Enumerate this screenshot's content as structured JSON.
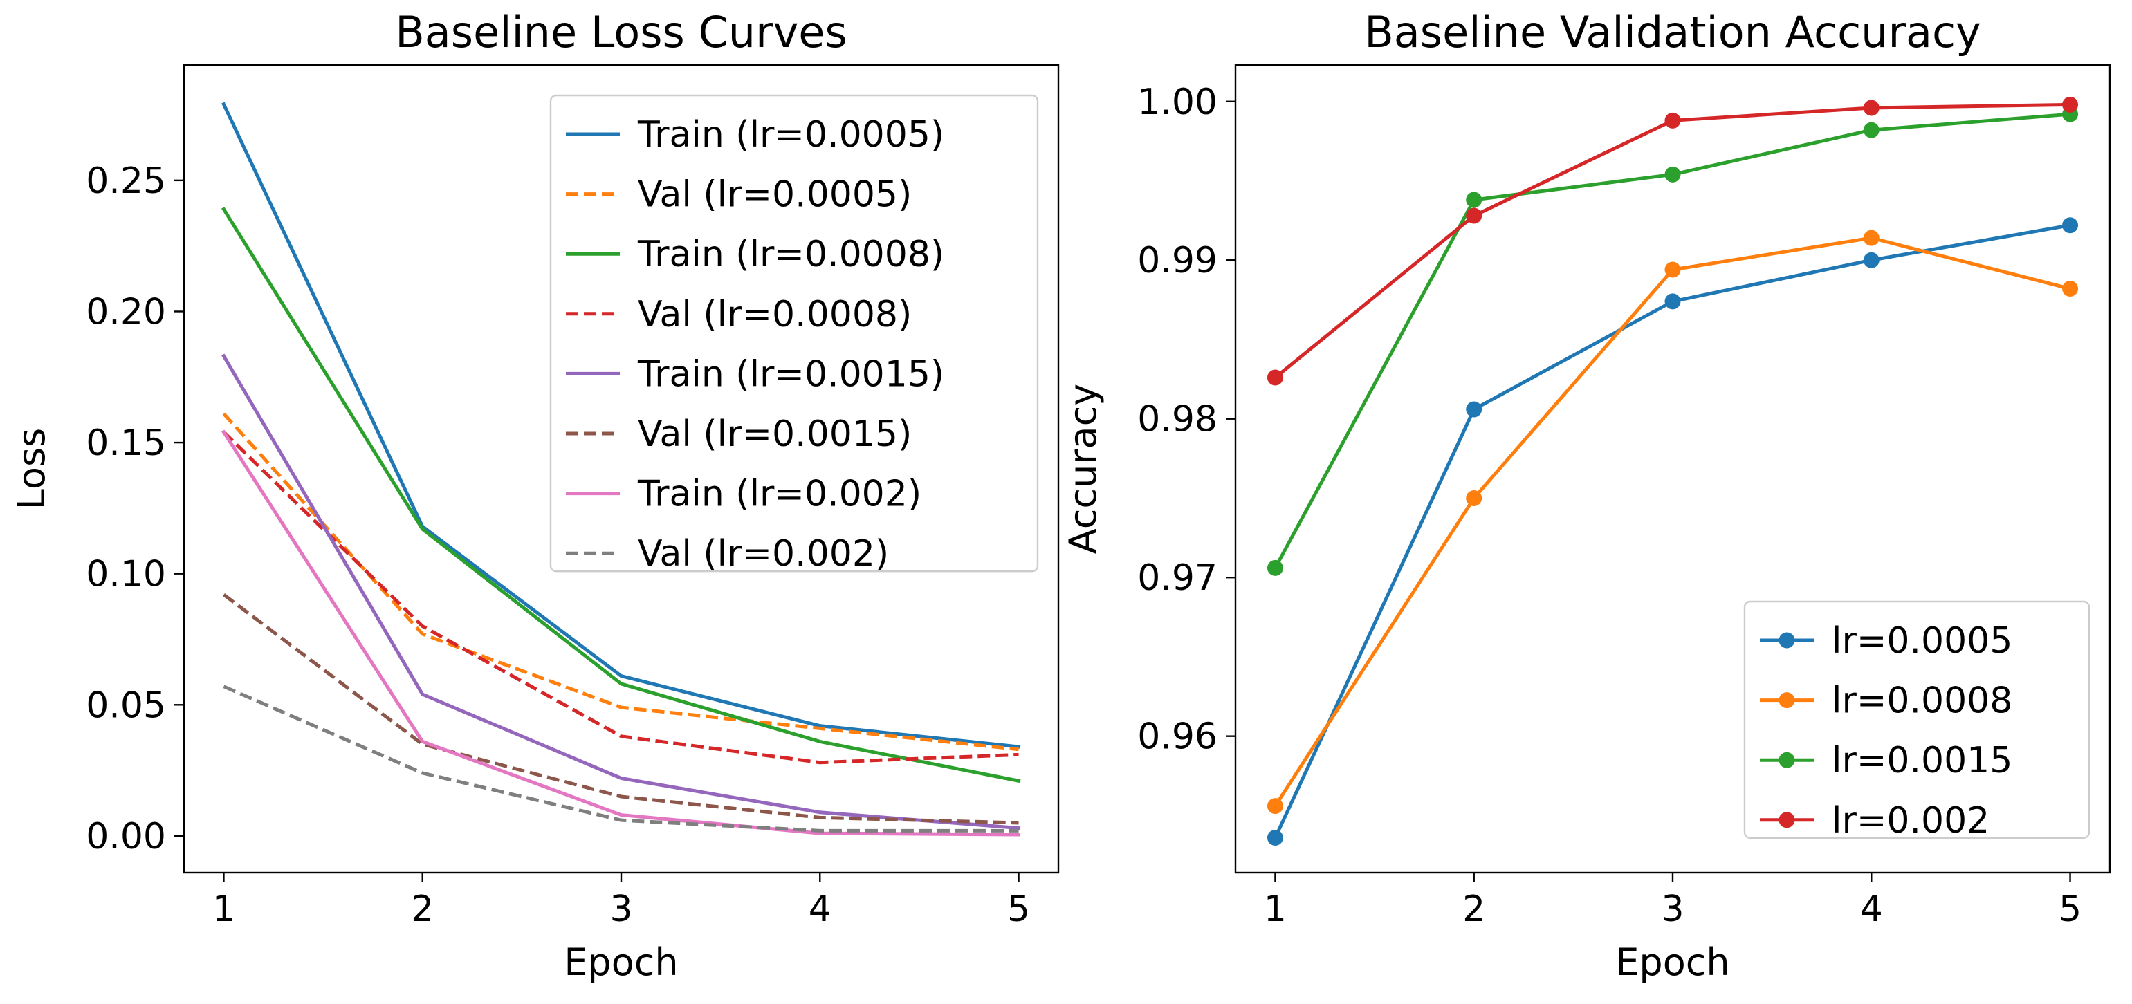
{
  "chart_data": [
    {
      "type": "line",
      "title": "Baseline Loss Curves",
      "xlabel": "Epoch",
      "ylabel": "Loss",
      "x": [
        1,
        2,
        3,
        4,
        5
      ],
      "xlim": [
        0.8,
        5.2
      ],
      "ylim": [
        -0.014,
        0.294
      ],
      "xticks": [
        1,
        2,
        3,
        4,
        5
      ],
      "yticks": [
        0.0,
        0.05,
        0.1,
        0.15,
        0.2,
        0.25
      ],
      "ytick_labels": [
        "0.00",
        "0.05",
        "0.10",
        "0.15",
        "0.20",
        "0.25"
      ],
      "legend_position": "upper right",
      "series": [
        {
          "name": "Train (lr=0.0005)",
          "color": "#1f77b4",
          "dashed": false,
          "values": [
            0.279,
            0.118,
            0.061,
            0.042,
            0.034
          ]
        },
        {
          "name": "Val (lr=0.0005)",
          "color": "#ff7f0e",
          "dashed": true,
          "values": [
            0.161,
            0.077,
            0.049,
            0.041,
            0.033
          ]
        },
        {
          "name": "Train (lr=0.0008)",
          "color": "#2ca02c",
          "dashed": false,
          "values": [
            0.239,
            0.117,
            0.058,
            0.036,
            0.021
          ]
        },
        {
          "name": "Val (lr=0.0008)",
          "color": "#d62728",
          "dashed": true,
          "values": [
            0.154,
            0.08,
            0.038,
            0.028,
            0.031
          ]
        },
        {
          "name": "Train (lr=0.0015)",
          "color": "#9467bd",
          "dashed": false,
          "values": [
            0.183,
            0.054,
            0.022,
            0.009,
            0.003
          ]
        },
        {
          "name": "Val (lr=0.0015)",
          "color": "#8c564b",
          "dashed": true,
          "values": [
            0.092,
            0.035,
            0.015,
            0.007,
            0.005
          ]
        },
        {
          "name": "Train (lr=0.002)",
          "color": "#e377c2",
          "dashed": false,
          "values": [
            0.154,
            0.036,
            0.008,
            0.001,
            0.0005
          ]
        },
        {
          "name": "Val (lr=0.002)",
          "color": "#7f7f7f",
          "dashed": true,
          "values": [
            0.057,
            0.024,
            0.006,
            0.002,
            0.002
          ]
        }
      ]
    },
    {
      "type": "line",
      "title": "Baseline Validation Accuracy",
      "xlabel": "Epoch",
      "ylabel": "Accuracy",
      "x": [
        1,
        2,
        3,
        4,
        5
      ],
      "xlim": [
        0.8,
        5.2
      ],
      "ylim": [
        0.9514,
        1.0023
      ],
      "xticks": [
        1,
        2,
        3,
        4,
        5
      ],
      "yticks": [
        0.96,
        0.97,
        0.98,
        0.99,
        1.0
      ],
      "ytick_labels": [
        "0.96",
        "0.97",
        "0.98",
        "0.99",
        "1.00"
      ],
      "markers": true,
      "legend_position": "lower right",
      "series": [
        {
          "name": "lr=0.0005",
          "color": "#1f77b4",
          "dashed": false,
          "values": [
            0.9536,
            0.9806,
            0.9874,
            0.99,
            0.9922
          ]
        },
        {
          "name": "lr=0.0008",
          "color": "#ff7f0e",
          "dashed": false,
          "values": [
            0.9556,
            0.975,
            0.9894,
            0.9914,
            0.9882
          ]
        },
        {
          "name": "lr=0.0015",
          "color": "#2ca02c",
          "dashed": false,
          "values": [
            0.9706,
            0.9938,
            0.9954,
            0.9982,
            0.9992
          ]
        },
        {
          "name": "lr=0.002",
          "color": "#d62728",
          "dashed": false,
          "values": [
            0.9826,
            0.9928,
            0.9988,
            0.9996,
            0.9998
          ]
        }
      ]
    }
  ]
}
